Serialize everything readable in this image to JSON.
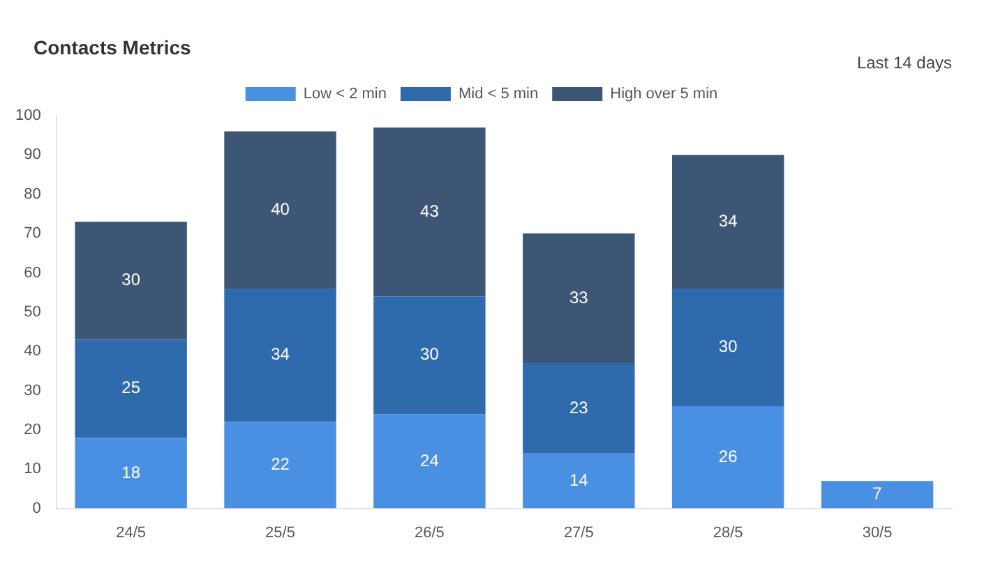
{
  "chart_data": {
    "type": "bar",
    "title": "Contacts Metrics",
    "annotations": [
      "Last 14 days"
    ],
    "categories": [
      "24/5",
      "25/5",
      "26/5",
      "27/5",
      "28/5",
      "30/5"
    ],
    "series": [
      {
        "name": "Low < 2 min",
        "color": "#4a90e2",
        "values": [
          18,
          22,
          24,
          14,
          26,
          7
        ]
      },
      {
        "name": "Mid < 5 min",
        "color": "#2f6aad",
        "values": [
          25,
          34,
          30,
          23,
          30,
          null
        ]
      },
      {
        "name": "High over 5 min",
        "color": "#3e5675",
        "values": [
          30,
          40,
          43,
          33,
          34,
          null
        ]
      }
    ],
    "stacked": true,
    "ylim": [
      0,
      100
    ],
    "yticks": [
      0,
      10,
      20,
      30,
      40,
      50,
      60,
      70,
      80,
      90,
      100
    ],
    "grid": false,
    "legend": "top",
    "data_labels": true
  }
}
